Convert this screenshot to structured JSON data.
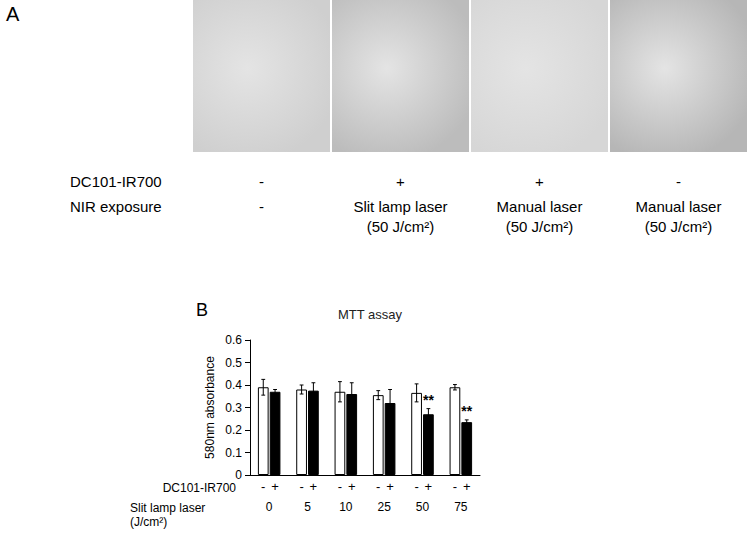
{
  "panel_a": {
    "label": "A",
    "rows": [
      {
        "label": "DC101-IR700",
        "cells": [
          "-",
          "+",
          "+",
          "-"
        ]
      },
      {
        "label": "NIR exposure",
        "cells": [
          "-",
          "Slit lamp laser\n(50 J/cm²)",
          "Manual laser\n(50 J/cm²)",
          "Manual laser\n(50 J/cm²)"
        ]
      }
    ]
  },
  "panel_b": {
    "label": "B"
  },
  "chart_data": {
    "type": "bar",
    "title": "MTT assay",
    "ylabel": "580nm absorbance",
    "xlabel": "Slit lamp laser\n(J/cm²)",
    "series_title": "DC101-IR700",
    "categories": [
      "0",
      "5",
      "10",
      "25",
      "50",
      "75"
    ],
    "series": [
      {
        "name": "-",
        "color": "#ffffff",
        "values": [
          0.39,
          0.38,
          0.37,
          0.355,
          0.365,
          0.39
        ],
        "errors": [
          0.035,
          0.02,
          0.045,
          0.02,
          0.04,
          0.012
        ]
      },
      {
        "name": "+",
        "color": "#000000",
        "values": [
          0.37,
          0.375,
          0.36,
          0.32,
          0.27,
          0.235
        ],
        "errors": [
          0.01,
          0.035,
          0.05,
          0.06,
          0.025,
          0.01
        ]
      }
    ],
    "annotations": [
      {
        "text": "**",
        "category": "50",
        "series": "+"
      },
      {
        "text": "**",
        "category": "75",
        "series": "+"
      }
    ],
    "ylim": [
      0,
      0.6
    ],
    "yticks": [
      0,
      0.1,
      0.2,
      0.3,
      0.4,
      0.5,
      0.6
    ],
    "grid": false
  }
}
